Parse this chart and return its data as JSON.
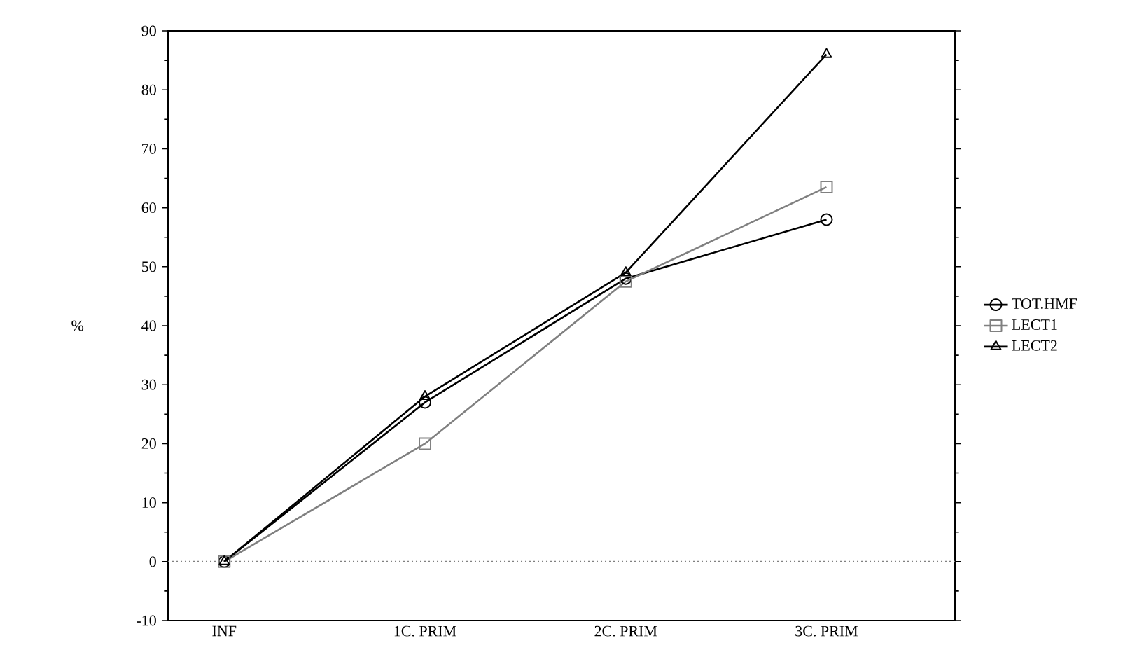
{
  "chart_data": {
    "type": "line",
    "ylabel": "%",
    "categories": [
      "INF",
      "1C. PRIM",
      "2C. PRIM",
      "3C. PRIM"
    ],
    "series": [
      {
        "name": "TOT.HMF",
        "color": "#000000",
        "marker": "circle",
        "values": [
          0,
          27,
          48,
          58
        ]
      },
      {
        "name": "LECT1",
        "color": "#808080",
        "marker": "square",
        "values": [
          0,
          20,
          47.5,
          63.5
        ]
      },
      {
        "name": "LECT2",
        "color": "#000000",
        "marker": "triangle",
        "values": [
          0,
          28,
          49,
          86
        ]
      }
    ],
    "ylim": [
      -10,
      90
    ],
    "yticks": [
      -10,
      0,
      10,
      20,
      30,
      40,
      50,
      60,
      70,
      80,
      90
    ],
    "ref_lines": [
      {
        "axis": "y",
        "value": 0,
        "line_style": "dotted",
        "color": "#808080"
      }
    ],
    "legend": "right",
    "grid": false,
    "line_style": "solid"
  }
}
